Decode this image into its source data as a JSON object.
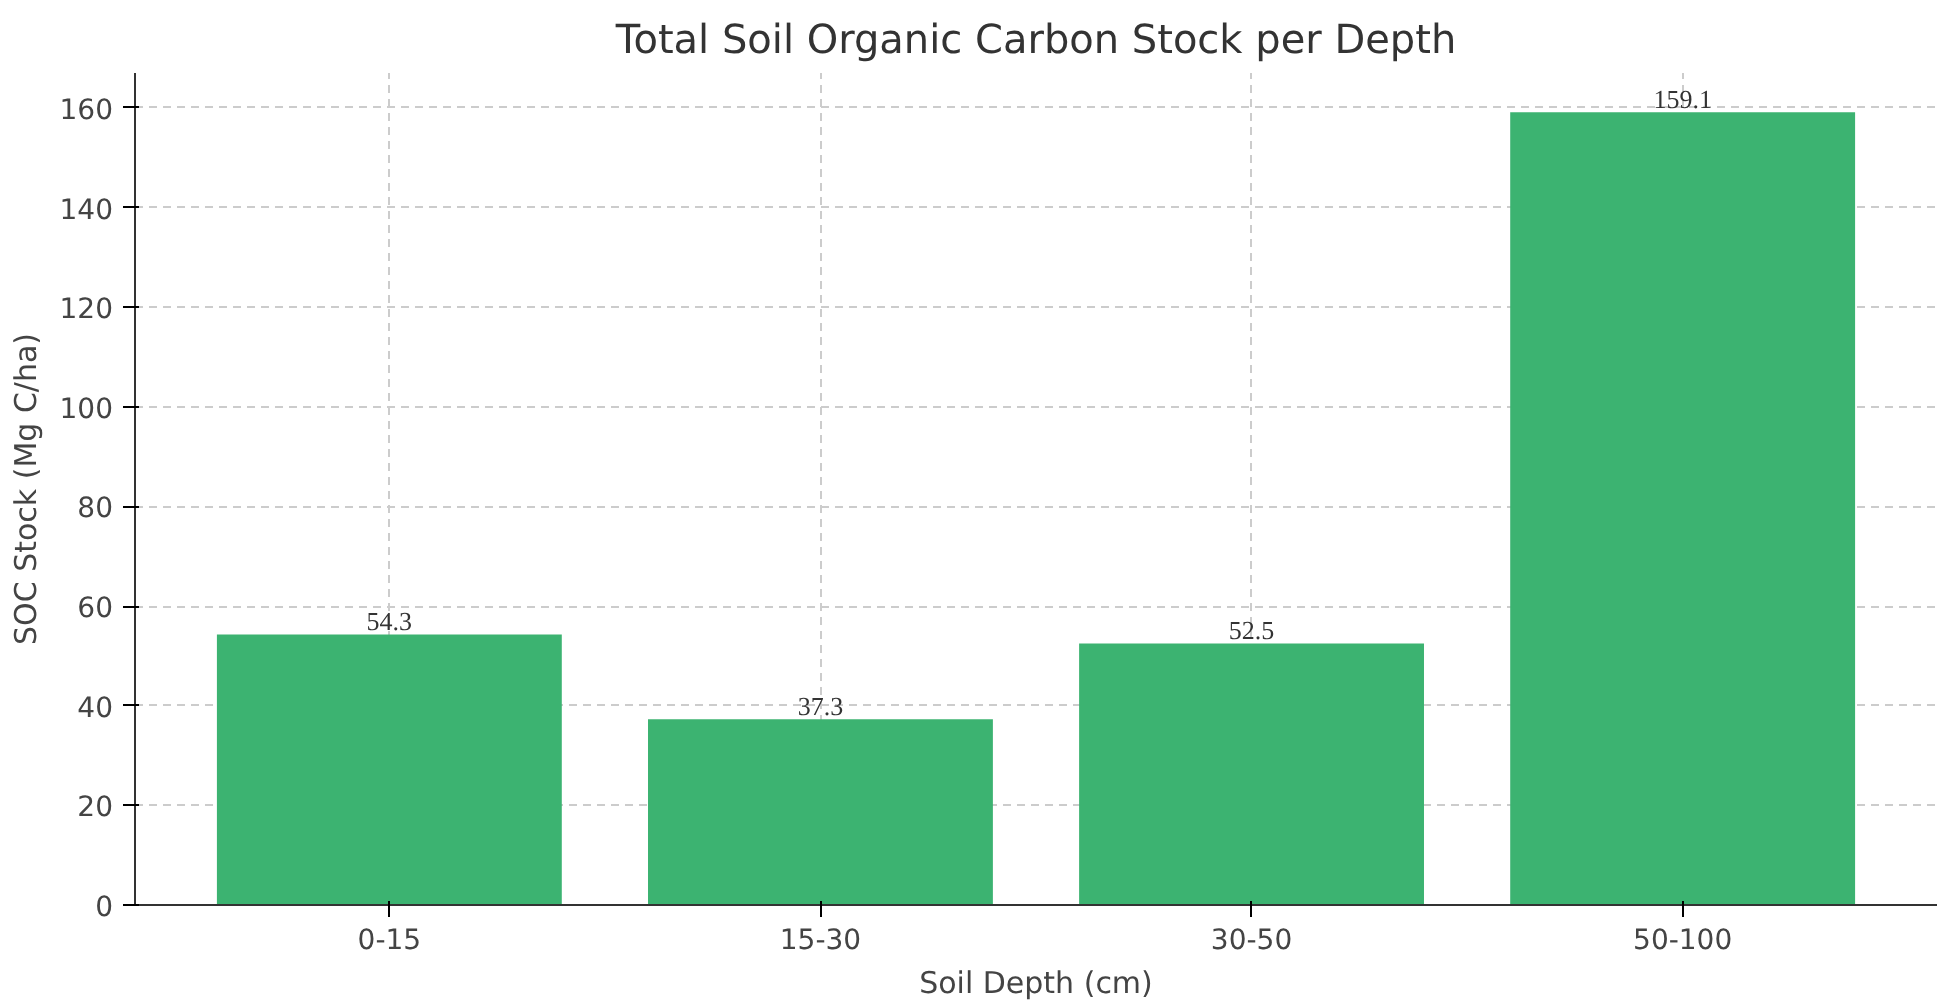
{
  "chart_data": {
    "type": "bar",
    "title": "Total Soil Organic Carbon Stock per Depth",
    "xlabel": "Soil Depth (cm)",
    "ylabel": "SOC Stock (Mg C/ha)",
    "categories": [
      "0-15",
      "15-30",
      "30-50",
      "50-100"
    ],
    "values": [
      54.3,
      37.3,
      52.5,
      159.1
    ],
    "color": "#3cb371",
    "ylim": [
      0,
      167
    ],
    "yticks": [
      0,
      20,
      40,
      60,
      80,
      100,
      120,
      140,
      160
    ],
    "grid": true,
    "data_labels": true
  }
}
